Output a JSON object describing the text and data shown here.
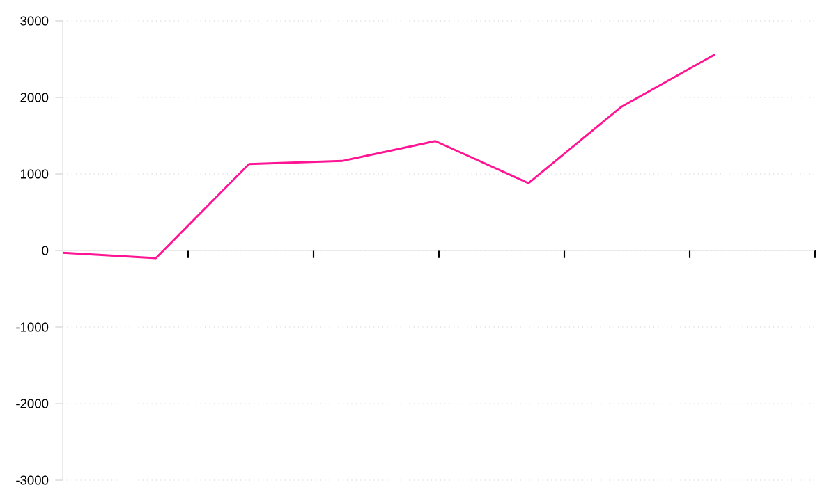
{
  "chart_data": {
    "type": "line",
    "categories": [
      null,
      null,
      null,
      null,
      null,
      null,
      null,
      null
    ],
    "series": [
      {
        "color": "#ff1493",
        "values": [
          -30,
          -100,
          1130,
          1170,
          1430,
          880,
          1880,
          2560
        ]
      }
    ],
    "ylim": [
      -3000,
      3000
    ],
    "yticks": [
      -3000,
      -2000,
      -1000,
      0,
      1000,
      2000,
      3000
    ],
    "grid": "y",
    "tick_labels": "y",
    "marker": "none",
    "line_style": "solid"
  }
}
